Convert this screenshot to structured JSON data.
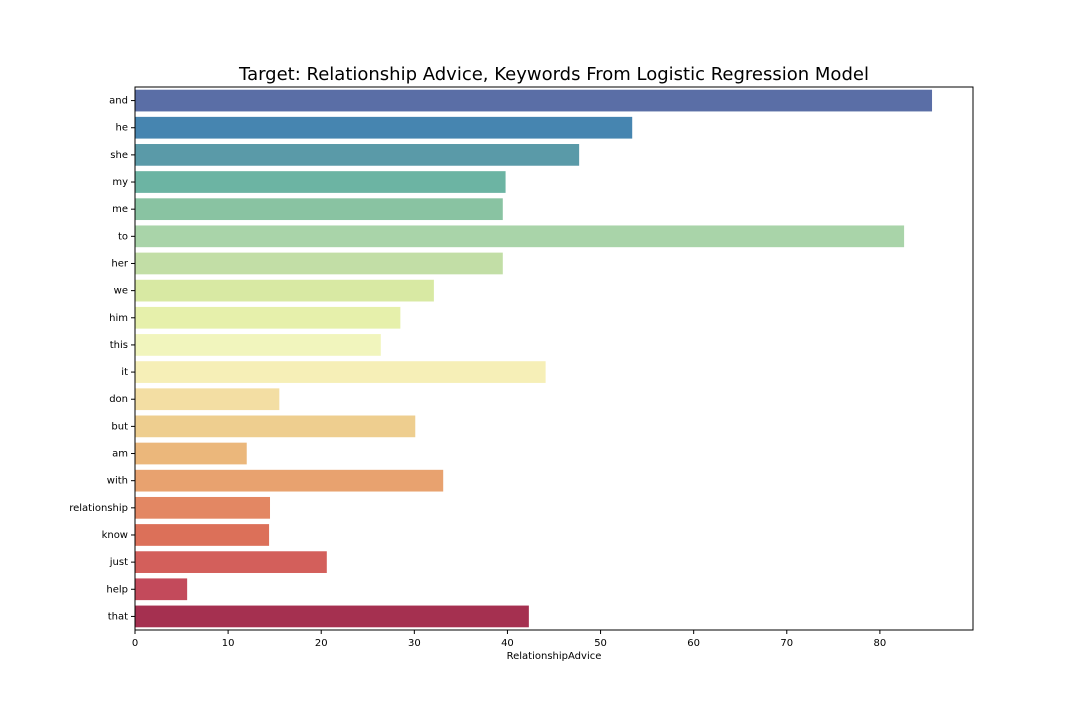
{
  "chart_data": {
    "type": "bar",
    "orientation": "horizontal",
    "title": "Target: Relationship Advice,  Keywords From Logistic Regression Model",
    "xlabel": "RelationshipAdvice",
    "ylabel": "",
    "xlim": [
      0,
      90
    ],
    "xticks": [
      0,
      10,
      20,
      30,
      40,
      50,
      60,
      70,
      80
    ],
    "grid": false,
    "legend": "none",
    "palette": "Spectral_r",
    "categories": [
      "and",
      "he",
      "she",
      "my",
      "me",
      "to",
      "her",
      "we",
      "him",
      "this",
      "it",
      "don",
      "but",
      "am",
      "with",
      "relationship",
      "know",
      "just",
      "help",
      "that"
    ],
    "values": [
      85.6,
      53.4,
      47.7,
      39.8,
      39.5,
      82.6,
      39.5,
      32.1,
      28.5,
      26.4,
      44.1,
      15.5,
      30.1,
      12.0,
      33.1,
      14.5,
      14.4,
      20.6,
      5.6,
      42.3
    ],
    "colors": [
      "#5a6ea6",
      "#4685b0",
      "#5a9aa8",
      "#6cb4a3",
      "#89c3a2",
      "#a9d4a9",
      "#c2dea6",
      "#d8e9a3",
      "#e6f0ab",
      "#f1f5bd",
      "#f6efb7",
      "#f3dea3",
      "#eece8f",
      "#ebb77b",
      "#e8a26f",
      "#e38763",
      "#dc7059",
      "#d35f5b",
      "#c34a5b",
      "#a53050"
    ]
  }
}
